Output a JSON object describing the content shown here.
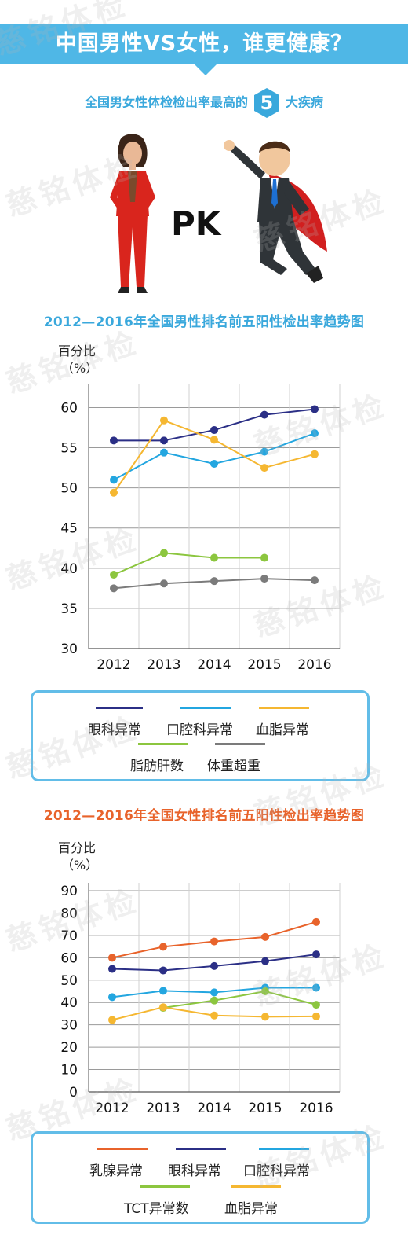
{
  "header": {
    "title": "中国男性VS女性，谁更健康？",
    "subtitle_prefix": "全国男女性体检检出率最高的",
    "subtitle_number": "5",
    "subtitle_suffix": "大疾病",
    "pk_label": "PK"
  },
  "watermark_text": "慈铭体检",
  "colors": {
    "banner": "#4fb7e6",
    "accent_blue": "#3aa8dc",
    "accent_orange": "#e8632b"
  },
  "chart_data": [
    {
      "type": "line",
      "title": "2012—2016年全国男性排名前五阳性检出率趋势图",
      "ylabel_line1": "百分比",
      "ylabel_line2": "（%）",
      "x": [
        "2012",
        "2013",
        "2014",
        "2015",
        "2016"
      ],
      "yticks": [
        "30",
        "35",
        "40",
        "45",
        "50",
        "55",
        "60"
      ],
      "ylim": [
        30,
        62
      ],
      "grid": true,
      "legend_position": "bottom",
      "series": [
        {
          "name": "眼科异常",
          "color": "#2b2f86",
          "values": [
            55.9,
            55.9,
            57.2,
            59.1,
            59.8
          ]
        },
        {
          "name": "口腔科异常",
          "color": "#23a6e0",
          "values": [
            51.0,
            54.4,
            53.0,
            54.5,
            56.8
          ]
        },
        {
          "name": "血脂异常",
          "color": "#f5b731",
          "values": [
            49.4,
            58.4,
            56.0,
            52.5,
            54.2
          ]
        },
        {
          "name": "脂肪肝数",
          "color": "#8cc63f",
          "values": [
            39.2,
            41.9,
            41.3,
            41.3,
            null
          ]
        },
        {
          "name": "体重超重",
          "color": "#7b7b7b",
          "values": [
            37.5,
            38.1,
            38.4,
            38.7,
            38.5
          ]
        }
      ]
    },
    {
      "type": "line",
      "title": "2012—2016年全国女性排名前五阳性检出率趋势图",
      "ylabel_line1": "百分比",
      "ylabel_line2": "（%）",
      "x": [
        "2012",
        "2013",
        "2014",
        "2015",
        "2016"
      ],
      "yticks": [
        "0",
        "10",
        "20",
        "30",
        "40",
        "50",
        "60",
        "70",
        "80",
        "90"
      ],
      "ylim": [
        0,
        90
      ],
      "grid": true,
      "legend_position": "bottom",
      "series": [
        {
          "name": "乳腺异常",
          "color": "#e8632b",
          "values": [
            60.0,
            64.9,
            67.3,
            69.3,
            76.0
          ]
        },
        {
          "name": "眼科异常",
          "color": "#2b2f86",
          "values": [
            55.0,
            54.3,
            56.3,
            58.5,
            61.5
          ]
        },
        {
          "name": "口腔科异常",
          "color": "#23a6e0",
          "values": [
            42.4,
            45.2,
            44.5,
            46.6,
            46.6
          ]
        },
        {
          "name": "TCT异常数",
          "color": "#8cc63f",
          "values": [
            null,
            37.6,
            40.9,
            45.0,
            39.0
          ]
        },
        {
          "name": "血脂异常",
          "color": "#f5b731",
          "values": [
            32.2,
            37.9,
            34.2,
            33.6,
            33.8
          ]
        }
      ]
    }
  ]
}
